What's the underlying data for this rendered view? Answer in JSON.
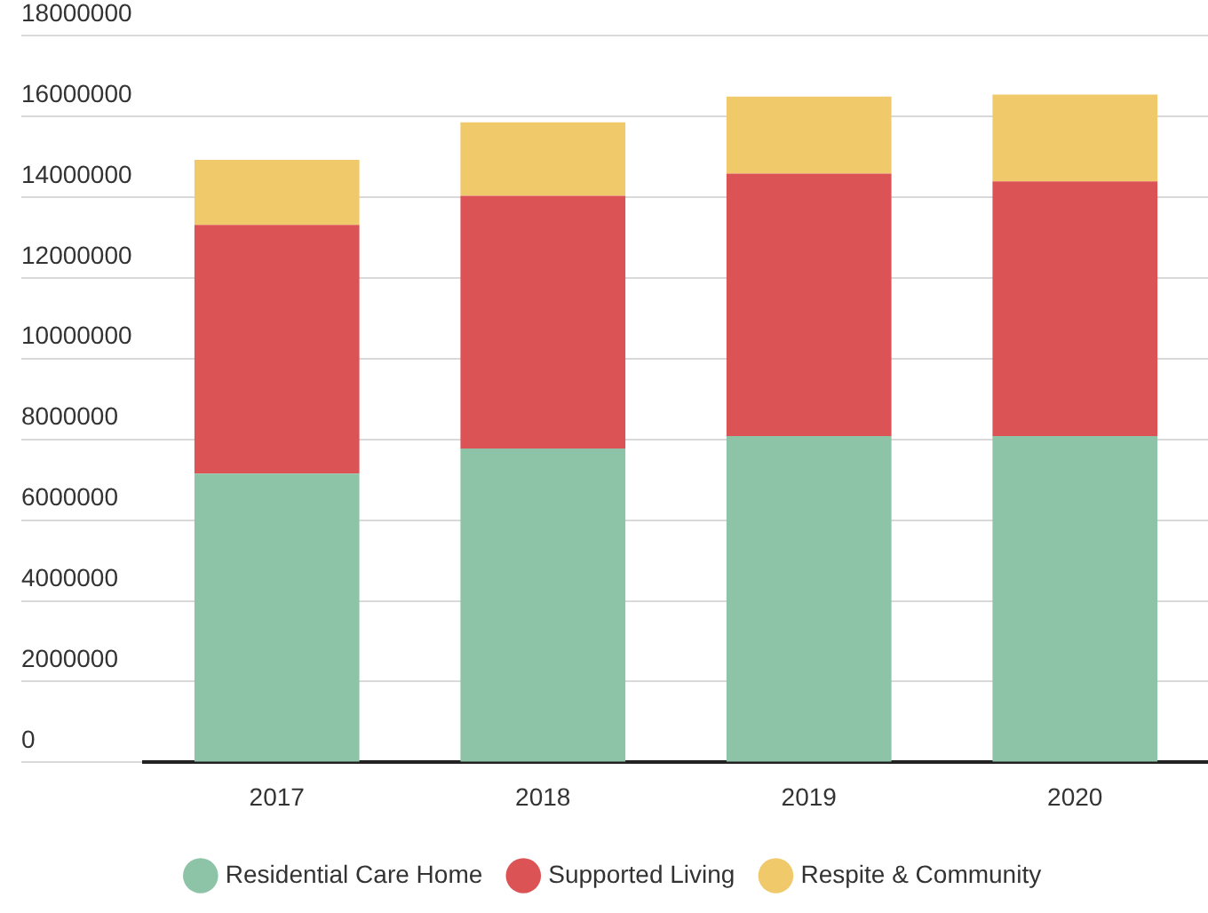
{
  "chart_data": {
    "type": "bar",
    "stacked": true,
    "categories": [
      "2017",
      "2018",
      "2019",
      "2020"
    ],
    "series": [
      {
        "name": "Residential Care Home",
        "color": "#8dc3a7",
        "values": [
          7150000,
          7770000,
          8080000,
          8080000
        ]
      },
      {
        "name": "Supported Living",
        "color": "#dc5356",
        "values": [
          6160000,
          6260000,
          6500000,
          6310000
        ]
      },
      {
        "name": "Respite & Community",
        "color": "#efc96a",
        "values": [
          1610000,
          1820000,
          1910000,
          2150000
        ]
      }
    ],
    "ylim": [
      0,
      18000000
    ],
    "yticks": [
      0,
      2000000,
      4000000,
      6000000,
      8000000,
      10000000,
      12000000,
      14000000,
      16000000,
      18000000
    ],
    "grid": "y",
    "legend": "bottom"
  }
}
